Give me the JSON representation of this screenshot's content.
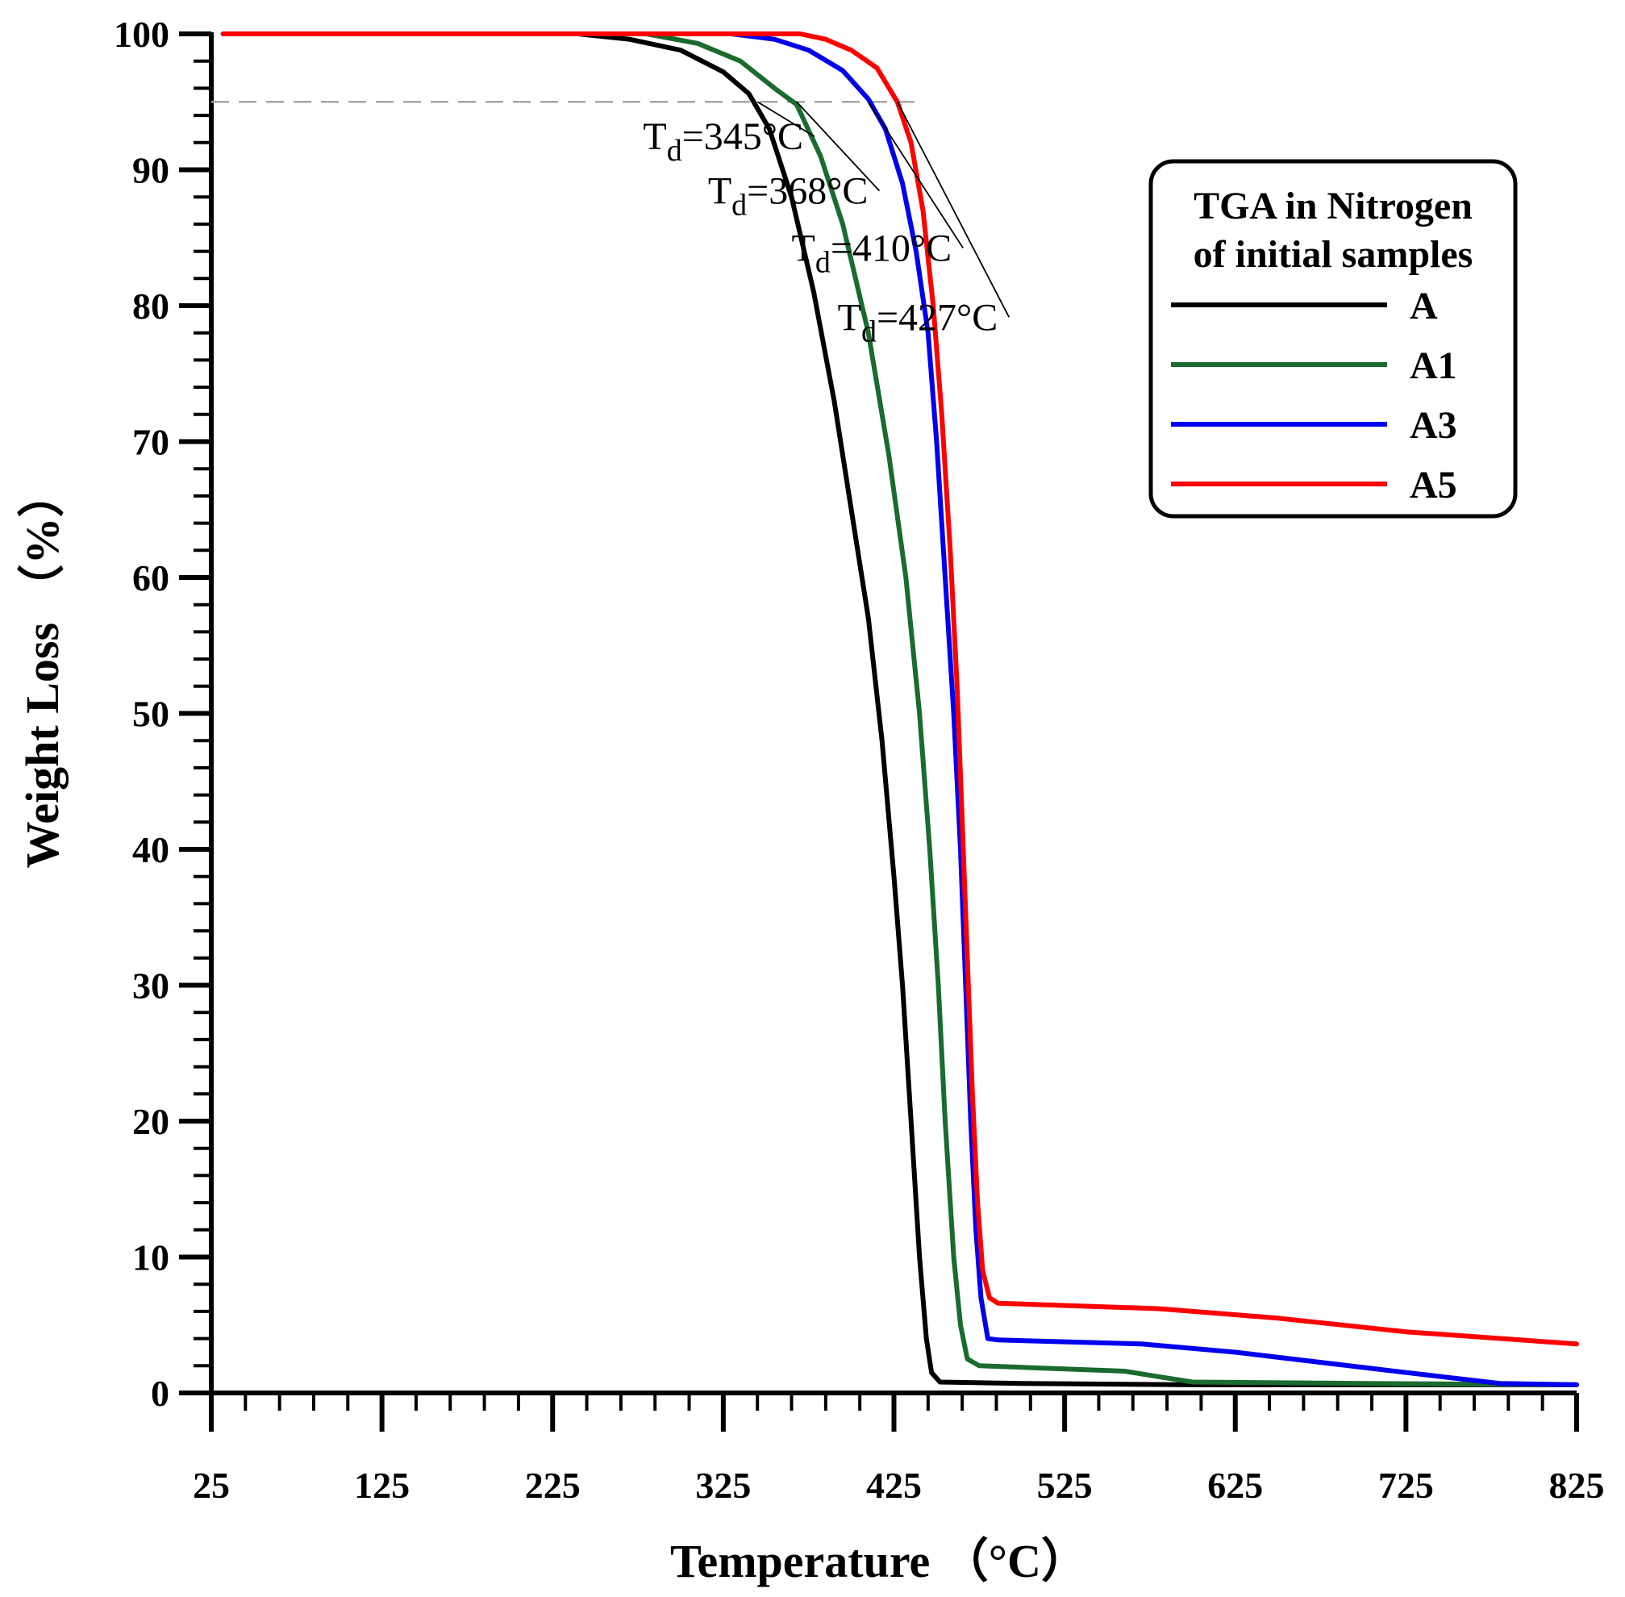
{
  "chart_data": {
    "type": "line",
    "title": "",
    "xlabel": "Temperature （°C）",
    "ylabel": "Weight Loss （%）",
    "xlim": [
      25,
      825
    ],
    "ylim": [
      0,
      100
    ],
    "x_ticks": [
      25,
      125,
      225,
      325,
      425,
      525,
      625,
      725,
      825
    ],
    "y_ticks": [
      0,
      10,
      20,
      30,
      40,
      50,
      60,
      70,
      80,
      90,
      100
    ],
    "x_minor_step": 20,
    "y_minor_step": 2,
    "grid": false,
    "reference_line": {
      "y": 95,
      "x_start": 25,
      "x_end": 440,
      "style": "dashed"
    },
    "legend": {
      "position": "top-right",
      "title_lines": [
        "TGA in Nitrogen",
        "of initial samples"
      ]
    },
    "series": [
      {
        "name": "A",
        "color": "#000000",
        "points": [
          [
            32,
            100
          ],
          [
            240,
            100
          ],
          [
            270,
            99.6
          ],
          [
            300,
            98.8
          ],
          [
            325,
            97.2
          ],
          [
            340,
            95.6
          ],
          [
            352,
            93
          ],
          [
            365,
            88
          ],
          [
            378,
            81
          ],
          [
            390,
            73
          ],
          [
            400,
            65
          ],
          [
            410,
            57
          ],
          [
            418,
            48
          ],
          [
            425,
            38
          ],
          [
            430,
            30
          ],
          [
            435,
            20
          ],
          [
            440,
            10
          ],
          [
            444,
            4
          ],
          [
            447,
            1.5
          ],
          [
            452,
            0.8
          ],
          [
            500,
            0.7
          ],
          [
            600,
            0.6
          ],
          [
            825,
            0.6
          ]
        ]
      },
      {
        "name": "A1",
        "color": "#1a6b2e",
        "points": [
          [
            32,
            100
          ],
          [
            280,
            100
          ],
          [
            310,
            99.3
          ],
          [
            335,
            98
          ],
          [
            355,
            96
          ],
          [
            368,
            94.8
          ],
          [
            382,
            91
          ],
          [
            395,
            86
          ],
          [
            410,
            78
          ],
          [
            422,
            69
          ],
          [
            432,
            60
          ],
          [
            440,
            50
          ],
          [
            446,
            40
          ],
          [
            451,
            30
          ],
          [
            455,
            20
          ],
          [
            460,
            10
          ],
          [
            464,
            5
          ],
          [
            468,
            2.5
          ],
          [
            475,
            2
          ],
          [
            560,
            1.6
          ],
          [
            580,
            1.2
          ],
          [
            600,
            0.8
          ],
          [
            700,
            0.7
          ],
          [
            825,
            0.6
          ]
        ]
      },
      {
        "name": "A3",
        "color": "#0000ee",
        "points": [
          [
            32,
            100
          ],
          [
            330,
            100
          ],
          [
            355,
            99.6
          ],
          [
            375,
            98.8
          ],
          [
            395,
            97.3
          ],
          [
            410,
            95.2
          ],
          [
            420,
            93
          ],
          [
            430,
            89
          ],
          [
            438,
            84
          ],
          [
            445,
            78
          ],
          [
            450,
            70
          ],
          [
            455,
            60
          ],
          [
            460,
            50
          ],
          [
            464,
            40
          ],
          [
            467,
            30
          ],
          [
            470,
            20
          ],
          [
            473,
            12
          ],
          [
            476,
            7
          ],
          [
            480,
            4
          ],
          [
            486,
            3.9
          ],
          [
            570,
            3.6
          ],
          [
            625,
            3
          ],
          [
            725,
            1.5
          ],
          [
            780,
            0.7
          ],
          [
            825,
            0.6
          ]
        ]
      },
      {
        "name": "A5",
        "color": "#ff0000",
        "points": [
          [
            32,
            100
          ],
          [
            370,
            100
          ],
          [
            385,
            99.6
          ],
          [
            400,
            98.8
          ],
          [
            415,
            97.5
          ],
          [
            427,
            95
          ],
          [
            435,
            92
          ],
          [
            442,
            87
          ],
          [
            448,
            80
          ],
          [
            453,
            72
          ],
          [
            458,
            62
          ],
          [
            462,
            52
          ],
          [
            465,
            42
          ],
          [
            468,
            32
          ],
          [
            471,
            22
          ],
          [
            474,
            14
          ],
          [
            477,
            9
          ],
          [
            481,
            7
          ],
          [
            486,
            6.6
          ],
          [
            580,
            6.2
          ],
          [
            650,
            5.5
          ],
          [
            725,
            4.5
          ],
          [
            825,
            3.6
          ]
        ]
      }
    ],
    "annotations": [
      {
        "main": "T",
        "sub": "d",
        "value": "=345°C",
        "label_x": 278,
        "label_y": 91.5,
        "target_x": 345,
        "target_y": 95
      },
      {
        "main": "T",
        "sub": "d",
        "value": "=368°C",
        "label_x": 316,
        "label_y": 87.5,
        "target_x": 368,
        "target_y": 95
      },
      {
        "main": "T",
        "sub": "d",
        "value": "=410°C",
        "label_x": 365,
        "label_y": 83.3,
        "target_x": 410,
        "target_y": 95
      },
      {
        "main": "T",
        "sub": "d",
        "value": "=427°C",
        "label_x": 392,
        "label_y": 78.2,
        "target_x": 427,
        "target_y": 95
      }
    ]
  }
}
